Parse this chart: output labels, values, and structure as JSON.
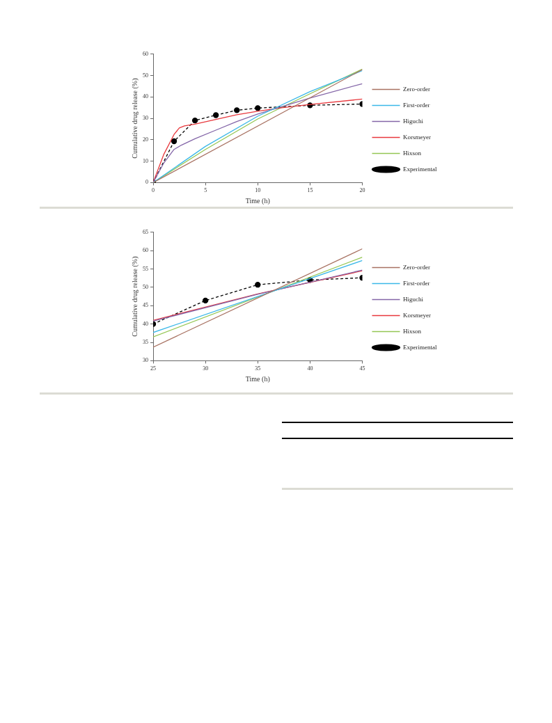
{
  "chart_data": [
    {
      "type": "line",
      "xlabel": "Time (h)",
      "ylabel": "Cumulative drug release (%)",
      "xlim": [
        0,
        20
      ],
      "xticks": [
        0,
        5,
        10,
        15,
        20
      ],
      "ylim": [
        0,
        60
      ],
      "yticks": [
        0,
        10,
        20,
        30,
        40,
        50,
        60
      ],
      "grid": false,
      "legend": "right",
      "series": [
        {
          "name": "Zero-order",
          "color": "#a87262",
          "x": [
            0,
            20
          ],
          "values": [
            0,
            52.8
          ],
          "marker": "none",
          "line_style": "solid"
        },
        {
          "name": "First-order",
          "color": "#3bb8e8",
          "x": [
            0,
            5,
            10,
            15,
            20
          ],
          "values": [
            0,
            16.9,
            31,
            42.5,
            52.3
          ],
          "marker": "none",
          "line_style": "solid"
        },
        {
          "name": "Higuchi",
          "color": "#8466a8",
          "x": [
            0,
            1,
            2,
            2.7,
            4,
            6,
            8,
            10,
            12,
            15,
            20
          ],
          "values": [
            0,
            9,
            15.5,
            17.5,
            20.5,
            24.5,
            28.5,
            32,
            35,
            39.5,
            46.2
          ],
          "marker": "none",
          "line_style": "solid"
        },
        {
          "name": "Korsmeyer",
          "color": "#e8383d",
          "x": [
            0,
            1,
            2,
            2.5,
            3,
            4,
            6,
            8,
            10,
            12,
            15,
            20
          ],
          "values": [
            0,
            13,
            22.5,
            25.5,
            26.5,
            27.3,
            29.5,
            31.7,
            33.3,
            34.8,
            36.5,
            39
          ],
          "marker": "none",
          "line_style": "solid"
        },
        {
          "name": "Hixson",
          "color": "#94c653",
          "x": [
            0,
            5,
            10,
            15,
            20
          ],
          "values": [
            0,
            15.5,
            29.7,
            41.5,
            53
          ],
          "marker": "none",
          "line_style": "solid"
        },
        {
          "name": "Experimental",
          "color": "#000000",
          "x": [
            0,
            2,
            4,
            6,
            8,
            10,
            15,
            20
          ],
          "values": [
            0,
            19.3,
            29,
            31.5,
            33.8,
            34.8,
            36.1,
            36.7
          ],
          "marker": "circle",
          "line_style": "dashed"
        }
      ]
    },
    {
      "type": "line",
      "xlabel": "Time (h)",
      "ylabel": "Cumulative drug release (%)",
      "xlim": [
        25,
        45
      ],
      "xticks": [
        25,
        30,
        35,
        40,
        45
      ],
      "ylim": [
        30,
        65
      ],
      "yticks": [
        30,
        35,
        40,
        45,
        50,
        55,
        60,
        65
      ],
      "grid": false,
      "legend": "right",
      "series": [
        {
          "name": "Zero-order",
          "color": "#a87262",
          "x": [
            25,
            45
          ],
          "values": [
            33.7,
            60.5
          ],
          "marker": "none",
          "line_style": "solid"
        },
        {
          "name": "First-order",
          "color": "#3bb8e8",
          "x": [
            25,
            45
          ],
          "values": [
            37.7,
            57.3
          ],
          "marker": "none",
          "line_style": "solid"
        },
        {
          "name": "Higuchi",
          "color": "#8466a8",
          "x": [
            25,
            35,
            45
          ],
          "values": [
            40.8,
            48.1,
            54.7
          ],
          "marker": "none",
          "line_style": "solid"
        },
        {
          "name": "Korsmeyer",
          "color": "#e8383d",
          "x": [
            25,
            35,
            45
          ],
          "values": [
            41,
            48.2,
            54.5
          ],
          "marker": "none",
          "line_style": "solid"
        },
        {
          "name": "Hixson",
          "color": "#94c653",
          "x": [
            25,
            45
          ],
          "values": [
            36.5,
            58.2
          ],
          "marker": "none",
          "line_style": "solid"
        },
        {
          "name": "Experimental",
          "color": "#000000",
          "x": [
            25,
            30,
            35,
            40,
            45
          ],
          "values": [
            40,
            46.4,
            50.7,
            52,
            52.6
          ],
          "marker": "circle",
          "line_style": "dashed"
        }
      ]
    }
  ]
}
